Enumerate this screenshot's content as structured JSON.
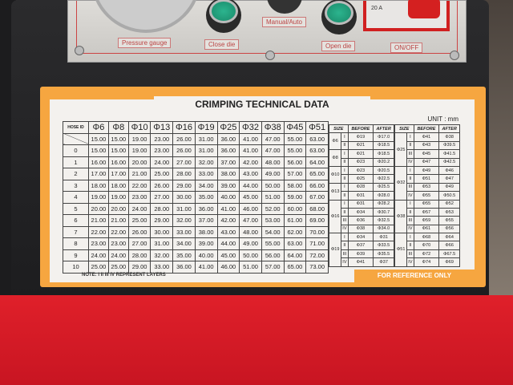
{
  "machine_panel": {
    "labels": {
      "pressure_gauge": "Pressure gauge",
      "close_die": "Close die",
      "manual_auto": "Manual/Auto",
      "open_die": "Open die",
      "on_off": "ON/OFF",
      "amps": "20 A"
    }
  },
  "label": {
    "title": "CRIMPING TECHNICAL DATA",
    "unit": "UNIT : mm",
    "note": "NOTE: I II III IV REPRESENT LAYERS",
    "footer": "FOR REFERENCE ONLY",
    "colors": {
      "border": "#f6a640",
      "machine_table": "#d81c26"
    },
    "main_table": {
      "corner_header": "HOSE ID",
      "columns": [
        "Φ6",
        "Φ8",
        "Φ10",
        "Φ13",
        "Φ16",
        "Φ19",
        "Φ25",
        "Φ32",
        "Φ38",
        "Φ45",
        "Φ51"
      ],
      "rows": [
        {
          "id": "",
          "values": [
            "15.00",
            "15.00",
            "19.00",
            "23.00",
            "26.00",
            "31.00",
            "36.00",
            "41.00",
            "47.00",
            "55.00",
            "63.00"
          ]
        },
        {
          "id": "0",
          "values": [
            "15.00",
            "15.00",
            "19.00",
            "23.00",
            "26.00",
            "31.00",
            "36.00",
            "41.00",
            "47.00",
            "55.00",
            "63.00"
          ]
        },
        {
          "id": "1",
          "values": [
            "16.00",
            "16.00",
            "20.00",
            "24.00",
            "27.00",
            "32.00",
            "37.00",
            "42.00",
            "48.00",
            "56.00",
            "64.00"
          ]
        },
        {
          "id": "2",
          "values": [
            "17.00",
            "17.00",
            "21.00",
            "25.00",
            "28.00",
            "33.00",
            "38.00",
            "43.00",
            "49.00",
            "57.00",
            "65.00"
          ]
        },
        {
          "id": "3",
          "values": [
            "18.00",
            "18.00",
            "22.00",
            "26.00",
            "29.00",
            "34.00",
            "39.00",
            "44.00",
            "50.00",
            "58.00",
            "66.00"
          ]
        },
        {
          "id": "4",
          "values": [
            "19.00",
            "19.00",
            "23.00",
            "27.00",
            "30.00",
            "35.00",
            "40.00",
            "45.00",
            "51.00",
            "59.00",
            "67.00"
          ]
        },
        {
          "id": "5",
          "values": [
            "20.00",
            "20.00",
            "24.00",
            "28.00",
            "31.00",
            "36.00",
            "41.00",
            "46.00",
            "52.00",
            "60.00",
            "68.00"
          ]
        },
        {
          "id": "6",
          "values": [
            "21.00",
            "21.00",
            "25.00",
            "29.00",
            "32.00",
            "37.00",
            "42.00",
            "47.00",
            "53.00",
            "61.00",
            "69.00"
          ]
        },
        {
          "id": "7",
          "values": [
            "22.00",
            "22.00",
            "26.00",
            "30.00",
            "33.00",
            "38.00",
            "43.00",
            "48.00",
            "54.00",
            "62.00",
            "70.00"
          ]
        },
        {
          "id": "8",
          "values": [
            "23.00",
            "23.00",
            "27.00",
            "31.00",
            "34.00",
            "39.00",
            "44.00",
            "49.00",
            "55.00",
            "63.00",
            "71.00"
          ]
        },
        {
          "id": "9",
          "values": [
            "24.00",
            "24.00",
            "28.00",
            "32.00",
            "35.00",
            "40.00",
            "45.00",
            "50.00",
            "56.00",
            "64.00",
            "72.00"
          ]
        },
        {
          "id": "10",
          "values": [
            "25.00",
            "25.00",
            "29.00",
            "33.00",
            "36.00",
            "41.00",
            "46.00",
            "51.00",
            "57.00",
            "65.00",
            "73.00"
          ]
        }
      ]
    },
    "size_tables": {
      "headers": [
        "SIZE",
        "BEFORE",
        "AFTER"
      ],
      "left": [
        {
          "size": "Φ6",
          "layers": [
            [
              "I",
              "Φ19",
              "Φ17.0"
            ],
            [
              "II",
              "Φ21",
              "Φ18.5"
            ]
          ]
        },
        {
          "size": "Φ8",
          "layers": [
            [
              "I",
              "Φ21",
              "Φ18.5"
            ],
            [
              "II",
              "Φ23",
              "Φ20.2"
            ]
          ]
        },
        {
          "size": "Φ10",
          "layers": [
            [
              "I",
              "Φ23",
              "Φ20.5"
            ],
            [
              "II",
              "Φ25",
              "Φ22.5"
            ]
          ]
        },
        {
          "size": "Φ13",
          "layers": [
            [
              "I",
              "Φ28",
              "Φ25.5"
            ],
            [
              "II",
              "Φ31",
              "Φ28.0"
            ]
          ]
        },
        {
          "size": "Φ16",
          "layers": [
            [
              "I",
              "Φ31",
              "Φ28.2"
            ],
            [
              "II",
              "Φ34",
              "Φ30.7"
            ],
            [
              "III",
              "Φ36",
              "Φ32.5"
            ],
            [
              "IV",
              "Φ38",
              "Φ34.0"
            ]
          ]
        },
        {
          "size": "Φ19",
          "layers": [
            [
              "I",
              "Φ34",
              "Φ31"
            ],
            [
              "II",
              "Φ37",
              "Φ33.5"
            ],
            [
              "III",
              "Φ39",
              "Φ35.5"
            ],
            [
              "IV",
              "Φ41",
              "Φ37"
            ]
          ]
        }
      ],
      "right": [
        {
          "size": "Φ25",
          "layers": [
            [
              "I",
              "Φ41",
              "Φ38"
            ],
            [
              "II",
              "Φ43",
              "Φ39.5"
            ],
            [
              "III",
              "Φ45",
              "Φ41.5"
            ],
            [
              "IV",
              "Φ47",
              "Φ42.5"
            ]
          ]
        },
        {
          "size": "Φ32",
          "layers": [
            [
              "I",
              "Φ49",
              "Φ46"
            ],
            [
              "II",
              "Φ51",
              "Φ47"
            ],
            [
              "III",
              "Φ53",
              "Φ49"
            ],
            [
              "IV",
              "Φ55",
              "Φ50.5"
            ]
          ]
        },
        {
          "size": "Φ38",
          "layers": [
            [
              "I",
              "Φ55",
              "Φ52"
            ],
            [
              "II",
              "Φ57",
              "Φ53"
            ],
            [
              "III",
              "Φ59",
              "Φ55"
            ],
            [
              "IV",
              "Φ61",
              "Φ56"
            ]
          ]
        },
        {
          "size": "Φ51",
          "layers": [
            [
              "I",
              "Φ68",
              "Φ64"
            ],
            [
              "II",
              "Φ70",
              "Φ66"
            ],
            [
              "III",
              "Φ72",
              "Φ67.5"
            ],
            [
              "IV",
              "Φ74",
              "Φ69"
            ]
          ]
        }
      ]
    }
  }
}
